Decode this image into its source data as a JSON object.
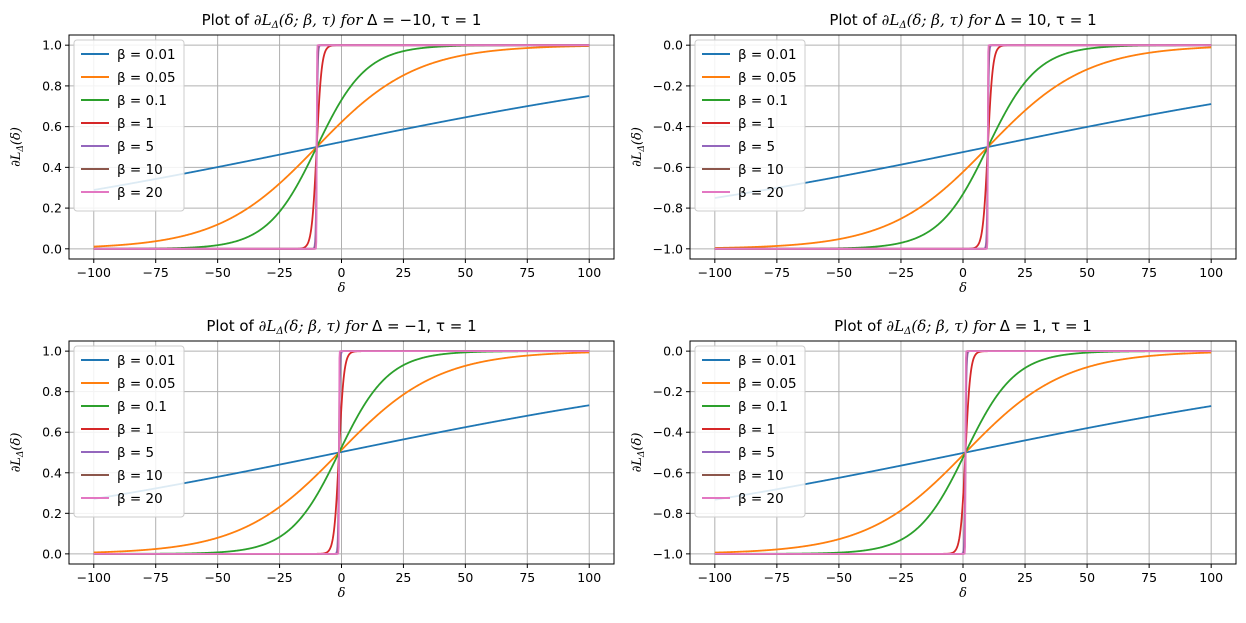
{
  "chart_data": [
    {
      "type": "line",
      "title_prefix": "Plot of ",
      "title_func": "∂L",
      "title_sub": "Δ",
      "title_args": "(δ; β, τ) ",
      "title_for": "for",
      "title_params": " Δ = −10, τ = 1",
      "xlabel": "δ",
      "ylabel_main": "∂L",
      "ylabel_sub": "Δ",
      "ylabel_args": "(δ)",
      "delta": -10,
      "tau": 1,
      "offset": 0,
      "xlim": [
        -100,
        100
      ],
      "ylim": [
        0,
        1
      ],
      "xticks": [
        -100,
        -75,
        -50,
        -25,
        0,
        25,
        50,
        75,
        100
      ],
      "xtick_labels": [
        "−100",
        "−75",
        "−50",
        "−25",
        "0",
        "25",
        "50",
        "75",
        "100"
      ],
      "yticks": [
        0,
        0.2,
        0.4,
        0.6,
        0.8,
        1.0
      ],
      "ytick_labels": [
        "0.0",
        "0.2",
        "0.4",
        "0.6",
        "0.8",
        "1.0"
      ],
      "grid": true,
      "legend_loc": "upper-left",
      "series": [
        {
          "name": "β = 0.01",
          "beta": 0.01,
          "color": "#1f77b4"
        },
        {
          "name": "β = 0.05",
          "beta": 0.05,
          "color": "#ff7f0e"
        },
        {
          "name": "β = 0.1",
          "beta": 0.1,
          "color": "#2ca02c"
        },
        {
          "name": "β = 1",
          "beta": 1,
          "color": "#d62728"
        },
        {
          "name": "β = 5",
          "beta": 5,
          "color": "#9467bd"
        },
        {
          "name": "β = 10",
          "beta": 10,
          "color": "#8c564b"
        },
        {
          "name": "β = 20",
          "beta": 20,
          "color": "#e377c2"
        }
      ]
    },
    {
      "type": "line",
      "title_prefix": "Plot of ",
      "title_func": "∂L",
      "title_sub": "Δ",
      "title_args": "(δ; β, τ) ",
      "title_for": "for",
      "title_params": " Δ = 10, τ = 1",
      "xlabel": "δ",
      "ylabel_main": "∂L",
      "ylabel_sub": "Δ",
      "ylabel_args": "(δ)",
      "delta": 10,
      "tau": 1,
      "offset": -1,
      "xlim": [
        -100,
        100
      ],
      "ylim": [
        -1,
        0
      ],
      "xticks": [
        -100,
        -75,
        -50,
        -25,
        0,
        25,
        50,
        75,
        100
      ],
      "xtick_labels": [
        "−100",
        "−75",
        "−50",
        "−25",
        "0",
        "25",
        "50",
        "75",
        "100"
      ],
      "yticks": [
        -1.0,
        -0.8,
        -0.6,
        -0.4,
        -0.2,
        0.0
      ],
      "ytick_labels": [
        "−1.0",
        "−0.8",
        "−0.6",
        "−0.4",
        "−0.2",
        "0.0"
      ],
      "grid": true,
      "legend_loc": "upper-left",
      "series": [
        {
          "name": "β = 0.01",
          "beta": 0.01,
          "color": "#1f77b4"
        },
        {
          "name": "β = 0.05",
          "beta": 0.05,
          "color": "#ff7f0e"
        },
        {
          "name": "β = 0.1",
          "beta": 0.1,
          "color": "#2ca02c"
        },
        {
          "name": "β = 1",
          "beta": 1,
          "color": "#d62728"
        },
        {
          "name": "β = 5",
          "beta": 5,
          "color": "#9467bd"
        },
        {
          "name": "β = 10",
          "beta": 10,
          "color": "#8c564b"
        },
        {
          "name": "β = 20",
          "beta": 20,
          "color": "#e377c2"
        }
      ]
    },
    {
      "type": "line",
      "title_prefix": "Plot of ",
      "title_func": "∂L",
      "title_sub": "Δ",
      "title_args": "(δ; β, τ) ",
      "title_for": "for",
      "title_params": " Δ = −1, τ = 1",
      "xlabel": "δ",
      "ylabel_main": "∂L",
      "ylabel_sub": "Δ",
      "ylabel_args": "(δ)",
      "delta": -1,
      "tau": 1,
      "offset": 0,
      "xlim": [
        -100,
        100
      ],
      "ylim": [
        0,
        1
      ],
      "xticks": [
        -100,
        -75,
        -50,
        -25,
        0,
        25,
        50,
        75,
        100
      ],
      "xtick_labels": [
        "−100",
        "−75",
        "−50",
        "−25",
        "0",
        "25",
        "50",
        "75",
        "100"
      ],
      "yticks": [
        0,
        0.2,
        0.4,
        0.6,
        0.8,
        1.0
      ],
      "ytick_labels": [
        "0.0",
        "0.2",
        "0.4",
        "0.6",
        "0.8",
        "1.0"
      ],
      "grid": true,
      "legend_loc": "upper-left",
      "series": [
        {
          "name": "β = 0.01",
          "beta": 0.01,
          "color": "#1f77b4"
        },
        {
          "name": "β = 0.05",
          "beta": 0.05,
          "color": "#ff7f0e"
        },
        {
          "name": "β = 0.1",
          "beta": 0.1,
          "color": "#2ca02c"
        },
        {
          "name": "β = 1",
          "beta": 1,
          "color": "#d62728"
        },
        {
          "name": "β = 5",
          "beta": 5,
          "color": "#9467bd"
        },
        {
          "name": "β = 10",
          "beta": 10,
          "color": "#8c564b"
        },
        {
          "name": "β = 20",
          "beta": 20,
          "color": "#e377c2"
        }
      ]
    },
    {
      "type": "line",
      "title_prefix": "Plot of ",
      "title_func": "∂L",
      "title_sub": "Δ",
      "title_args": "(δ; β, τ) ",
      "title_for": "for",
      "title_params": " Δ = 1, τ = 1",
      "xlabel": "δ",
      "ylabel_main": "∂L",
      "ylabel_sub": "Δ",
      "ylabel_args": "(δ)",
      "delta": 1,
      "tau": 1,
      "offset": -1,
      "xlim": [
        -100,
        100
      ],
      "ylim": [
        -1,
        0
      ],
      "xticks": [
        -100,
        -75,
        -50,
        -25,
        0,
        25,
        50,
        75,
        100
      ],
      "xtick_labels": [
        "−100",
        "−75",
        "−50",
        "−25",
        "0",
        "25",
        "50",
        "75",
        "100"
      ],
      "yticks": [
        -1.0,
        -0.8,
        -0.6,
        -0.4,
        -0.2,
        0.0
      ],
      "ytick_labels": [
        "−1.0",
        "−0.8",
        "−0.6",
        "−0.4",
        "−0.2",
        "0.0"
      ],
      "grid": true,
      "legend_loc": "upper-left",
      "series": [
        {
          "name": "β = 0.01",
          "beta": 0.01,
          "color": "#1f77b4"
        },
        {
          "name": "β = 0.05",
          "beta": 0.05,
          "color": "#ff7f0e"
        },
        {
          "name": "β = 0.1",
          "beta": 0.1,
          "color": "#2ca02c"
        },
        {
          "name": "β = 1",
          "beta": 1,
          "color": "#d62728"
        },
        {
          "name": "β = 5",
          "beta": 5,
          "color": "#9467bd"
        },
        {
          "name": "β = 10",
          "beta": 10,
          "color": "#8c564b"
        },
        {
          "name": "β = 20",
          "beta": 20,
          "color": "#e377c2"
        }
      ]
    }
  ]
}
